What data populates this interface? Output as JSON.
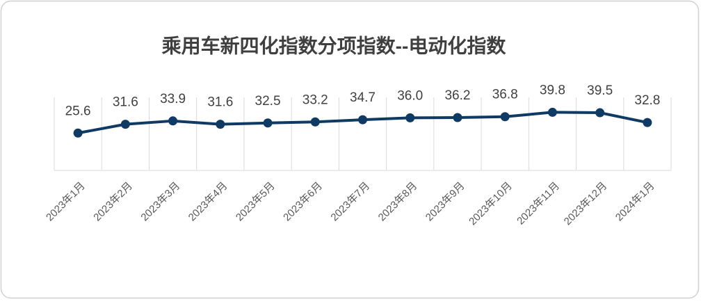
{
  "chart_data": {
    "type": "line",
    "title": "乘用车新四化指数分项指数--电动化指数",
    "categories": [
      "2023年1月",
      "2023年2月",
      "2023年3月",
      "2023年4月",
      "2023年5月",
      "2023年6月",
      "2023年7月",
      "2023年8月",
      "2023年9月",
      "2023年10月",
      "2023年11月",
      "2023年12月",
      "2024年1月"
    ],
    "values": [
      25.6,
      31.6,
      33.9,
      31.6,
      32.5,
      33.2,
      34.7,
      36.0,
      36.2,
      36.8,
      39.8,
      39.5,
      32.8
    ],
    "value_labels": [
      "25.6",
      "31.6",
      "33.9",
      "31.6",
      "32.5",
      "33.2",
      "34.7",
      "36.0",
      "36.2",
      "36.8",
      "39.8",
      "39.5",
      "32.8"
    ],
    "color": "#0f3a64",
    "ylim": [
      0,
      50
    ],
    "grid": true
  }
}
